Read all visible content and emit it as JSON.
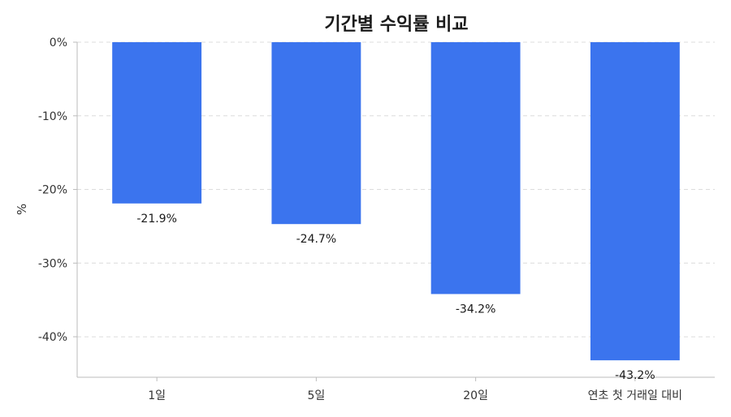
{
  "chart_data": {
    "type": "bar",
    "title": "기간별 수익률 비교",
    "ylabel": "%",
    "categories": [
      "1일",
      "5일",
      "20일",
      "연초 첫 거래일 대비"
    ],
    "values": [
      -21.9,
      -24.7,
      -34.2,
      -43.2
    ],
    "data_labels": [
      "-21.9%",
      "-24.7%",
      "-34.2%",
      "-43.2%"
    ],
    "ylim": [
      -45.5,
      0
    ],
    "yticks": [
      0,
      -10,
      -20,
      -30,
      -40
    ],
    "ytick_labels": [
      "0%",
      "-10%",
      "-20%",
      "-30%",
      "-40%"
    ],
    "grid": "y-dashed",
    "legend": "none",
    "bar_color": "#3b74ee"
  }
}
